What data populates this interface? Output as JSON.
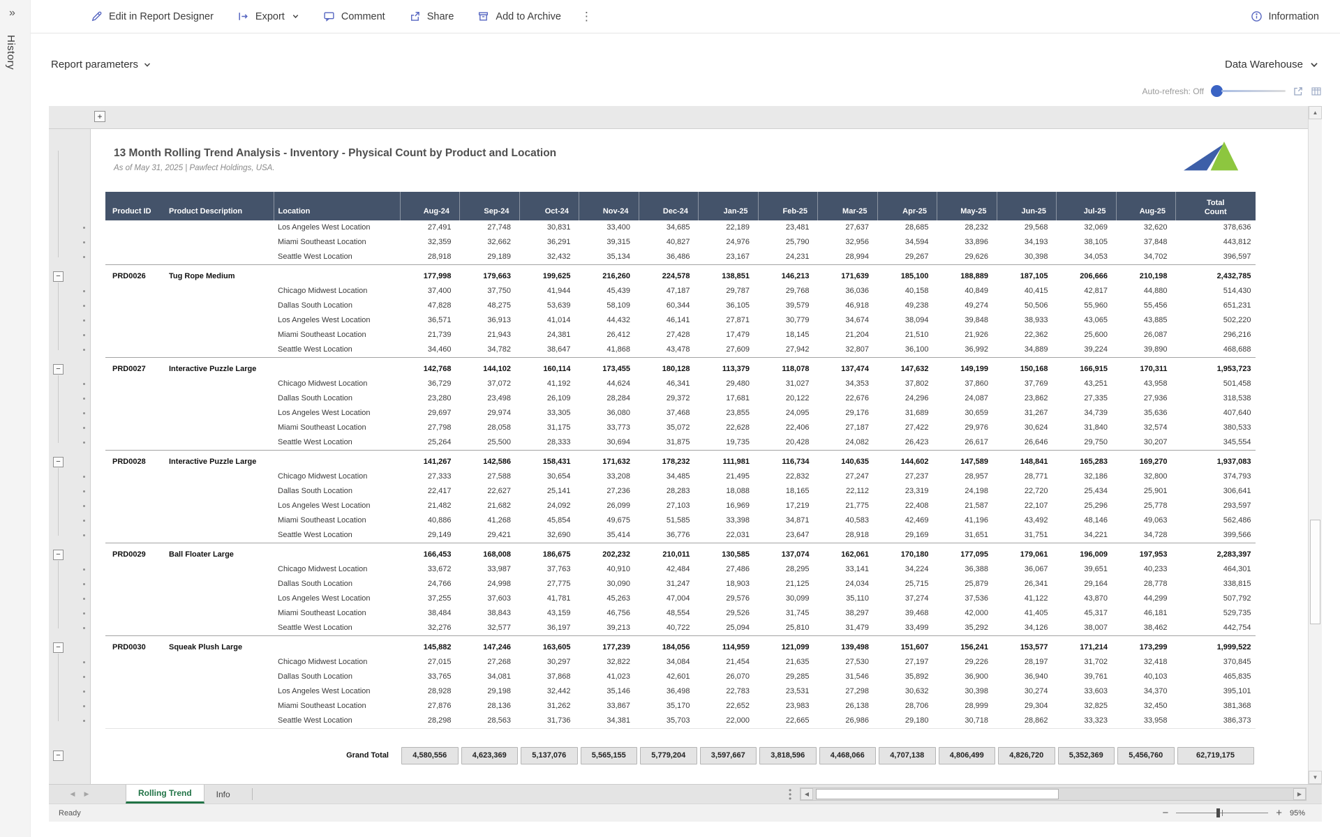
{
  "sidebar": {
    "expand_glyph": "»",
    "history_label": "History"
  },
  "toolbar": {
    "items": [
      {
        "icon": "pencil-icon",
        "label": "Edit in Report Designer"
      },
      {
        "icon": "export-icon",
        "label": "Export"
      },
      {
        "icon": "comment-icon",
        "label": "Comment"
      },
      {
        "icon": "share-icon",
        "label": "Share"
      },
      {
        "icon": "archive-icon",
        "label": "Add to Archive"
      }
    ],
    "more_glyph": "⋮",
    "information_label": "Information"
  },
  "params_bar": {
    "report_parameters": "Report parameters",
    "data_source": "Data Warehouse",
    "auto_refresh": "Auto-refresh: Off"
  },
  "colors": {
    "accent_blue": "#5565C0",
    "table_header_bg": "#44536A",
    "active_tab_green": "#217346",
    "logo_blue": "#3D5FA8",
    "logo_green": "#8DC63F",
    "autorefresh_knob": "#3A63C4"
  },
  "report": {
    "title": "13 Month Rolling Trend Analysis - Inventory - Physical Count by Product and Location",
    "subtitle": "As of May 31, 2025 | Pawfect Holdings, USA.",
    "col_product_id": "Product ID",
    "col_product_desc": "Product Description",
    "col_location": "Location",
    "months": [
      "Aug-24",
      "Sep-24",
      "Oct-24",
      "Nov-24",
      "Dec-24",
      "Jan-25",
      "Feb-25",
      "Mar-25",
      "Apr-25",
      "May-25",
      "Jun-25",
      "Jul-25",
      "Aug-25"
    ],
    "col_total": "Total Count",
    "rows": [
      {
        "t": "l",
        "loc": "Los Angeles West Location",
        "v": [
          "27,491",
          "27,748",
          "30,831",
          "33,400",
          "34,685",
          "22,189",
          "23,481",
          "27,637",
          "28,685",
          "28,232",
          "29,568",
          "32,069",
          "32,620",
          "378,636"
        ]
      },
      {
        "t": "l",
        "loc": "Miami Southeast Location",
        "v": [
          "32,359",
          "32,662",
          "36,291",
          "39,315",
          "40,827",
          "24,976",
          "25,790",
          "32,956",
          "34,594",
          "33,896",
          "34,193",
          "38,105",
          "37,848",
          "443,812"
        ]
      },
      {
        "t": "l",
        "loc": "Seattle West Location",
        "v": [
          "28,918",
          "29,189",
          "32,432",
          "35,134",
          "36,486",
          "23,167",
          "24,231",
          "28,994",
          "29,267",
          "29,626",
          "30,398",
          "34,053",
          "34,702",
          "396,597"
        ]
      },
      {
        "t": "p",
        "id": "PRD0026",
        "desc": "Tug Rope Medium",
        "v": [
          "177,998",
          "179,663",
          "199,625",
          "216,260",
          "224,578",
          "138,851",
          "146,213",
          "171,639",
          "185,100",
          "188,889",
          "187,105",
          "206,666",
          "210,198",
          "2,432,785"
        ]
      },
      {
        "t": "l",
        "loc": "Chicago Midwest Location",
        "v": [
          "37,400",
          "37,750",
          "41,944",
          "45,439",
          "47,187",
          "29,787",
          "29,768",
          "36,036",
          "40,158",
          "40,849",
          "40,415",
          "42,817",
          "44,880",
          "514,430"
        ]
      },
      {
        "t": "l",
        "loc": "Dallas South Location",
        "v": [
          "47,828",
          "48,275",
          "53,639",
          "58,109",
          "60,344",
          "36,105",
          "39,579",
          "46,918",
          "49,238",
          "49,274",
          "50,506",
          "55,960",
          "55,456",
          "651,231"
        ]
      },
      {
        "t": "l",
        "loc": "Los Angeles West Location",
        "v": [
          "36,571",
          "36,913",
          "41,014",
          "44,432",
          "46,141",
          "27,871",
          "30,779",
          "34,674",
          "38,094",
          "39,848",
          "38,933",
          "43,065",
          "43,885",
          "502,220"
        ]
      },
      {
        "t": "l",
        "loc": "Miami Southeast Location",
        "v": [
          "21,739",
          "21,943",
          "24,381",
          "26,412",
          "27,428",
          "17,479",
          "18,145",
          "21,204",
          "21,510",
          "21,926",
          "22,362",
          "25,600",
          "26,087",
          "296,216"
        ]
      },
      {
        "t": "l",
        "loc": "Seattle West Location",
        "v": [
          "34,460",
          "34,782",
          "38,647",
          "41,868",
          "43,478",
          "27,609",
          "27,942",
          "32,807",
          "36,100",
          "36,992",
          "34,889",
          "39,224",
          "39,890",
          "468,688"
        ]
      },
      {
        "t": "p",
        "id": "PRD0027",
        "desc": "Interactive Puzzle Large",
        "v": [
          "142,768",
          "144,102",
          "160,114",
          "173,455",
          "180,128",
          "113,379",
          "118,078",
          "137,474",
          "147,632",
          "149,199",
          "150,168",
          "166,915",
          "170,311",
          "1,953,723"
        ]
      },
      {
        "t": "l",
        "loc": "Chicago Midwest Location",
        "v": [
          "36,729",
          "37,072",
          "41,192",
          "44,624",
          "46,341",
          "29,480",
          "31,027",
          "34,353",
          "37,802",
          "37,860",
          "37,769",
          "43,251",
          "43,958",
          "501,458"
        ]
      },
      {
        "t": "l",
        "loc": "Dallas South Location",
        "v": [
          "23,280",
          "23,498",
          "26,109",
          "28,284",
          "29,372",
          "17,681",
          "20,122",
          "22,676",
          "24,296",
          "24,087",
          "23,862",
          "27,335",
          "27,936",
          "318,538"
        ]
      },
      {
        "t": "l",
        "loc": "Los Angeles West Location",
        "v": [
          "29,697",
          "29,974",
          "33,305",
          "36,080",
          "37,468",
          "23,855",
          "24,095",
          "29,176",
          "31,689",
          "30,659",
          "31,267",
          "34,739",
          "35,636",
          "407,640"
        ]
      },
      {
        "t": "l",
        "loc": "Miami Southeast Location",
        "v": [
          "27,798",
          "28,058",
          "31,175",
          "33,773",
          "35,072",
          "22,628",
          "22,406",
          "27,187",
          "27,422",
          "29,976",
          "30,624",
          "31,840",
          "32,574",
          "380,533"
        ]
      },
      {
        "t": "l",
        "loc": "Seattle West Location",
        "v": [
          "25,264",
          "25,500",
          "28,333",
          "30,694",
          "31,875",
          "19,735",
          "20,428",
          "24,082",
          "26,423",
          "26,617",
          "26,646",
          "29,750",
          "30,207",
          "345,554"
        ]
      },
      {
        "t": "p",
        "id": "PRD0028",
        "desc": "Interactive Puzzle Large",
        "v": [
          "141,267",
          "142,586",
          "158,431",
          "171,632",
          "178,232",
          "111,981",
          "116,734",
          "140,635",
          "144,602",
          "147,589",
          "148,841",
          "165,283",
          "169,270",
          "1,937,083"
        ]
      },
      {
        "t": "l",
        "loc": "Chicago Midwest Location",
        "v": [
          "27,333",
          "27,588",
          "30,654",
          "33,208",
          "34,485",
          "21,495",
          "22,832",
          "27,247",
          "27,237",
          "28,957",
          "28,771",
          "32,186",
          "32,800",
          "374,793"
        ]
      },
      {
        "t": "l",
        "loc": "Dallas South Location",
        "v": [
          "22,417",
          "22,627",
          "25,141",
          "27,236",
          "28,283",
          "18,088",
          "18,165",
          "22,112",
          "23,319",
          "24,198",
          "22,720",
          "25,434",
          "25,901",
          "306,641"
        ]
      },
      {
        "t": "l",
        "loc": "Los Angeles West Location",
        "v": [
          "21,482",
          "21,682",
          "24,092",
          "26,099",
          "27,103",
          "16,969",
          "17,219",
          "21,775",
          "22,408",
          "21,587",
          "22,107",
          "25,296",
          "25,778",
          "293,597"
        ]
      },
      {
        "t": "l",
        "loc": "Miami Southeast Location",
        "v": [
          "40,886",
          "41,268",
          "45,854",
          "49,675",
          "51,585",
          "33,398",
          "34,871",
          "40,583",
          "42,469",
          "41,196",
          "43,492",
          "48,146",
          "49,063",
          "562,486"
        ]
      },
      {
        "t": "l",
        "loc": "Seattle West Location",
        "v": [
          "29,149",
          "29,421",
          "32,690",
          "35,414",
          "36,776",
          "22,031",
          "23,647",
          "28,918",
          "29,169",
          "31,651",
          "31,751",
          "34,221",
          "34,728",
          "399,566"
        ]
      },
      {
        "t": "p",
        "id": "PRD0029",
        "desc": "Ball Floater Large",
        "v": [
          "166,453",
          "168,008",
          "186,675",
          "202,232",
          "210,011",
          "130,585",
          "137,074",
          "162,061",
          "170,180",
          "177,095",
          "179,061",
          "196,009",
          "197,953",
          "2,283,397"
        ]
      },
      {
        "t": "l",
        "loc": "Chicago Midwest Location",
        "v": [
          "33,672",
          "33,987",
          "37,763",
          "40,910",
          "42,484",
          "27,486",
          "28,295",
          "33,141",
          "34,224",
          "36,388",
          "36,067",
          "39,651",
          "40,233",
          "464,301"
        ]
      },
      {
        "t": "l",
        "loc": "Dallas South Location",
        "v": [
          "24,766",
          "24,998",
          "27,775",
          "30,090",
          "31,247",
          "18,903",
          "21,125",
          "24,034",
          "25,715",
          "25,879",
          "26,341",
          "29,164",
          "28,778",
          "338,815"
        ]
      },
      {
        "t": "l",
        "loc": "Los Angeles West Location",
        "v": [
          "37,255",
          "37,603",
          "41,781",
          "45,263",
          "47,004",
          "29,576",
          "30,099",
          "35,110",
          "37,274",
          "37,536",
          "41,122",
          "43,870",
          "44,299",
          "507,792"
        ]
      },
      {
        "t": "l",
        "loc": "Miami Southeast Location",
        "v": [
          "38,484",
          "38,843",
          "43,159",
          "46,756",
          "48,554",
          "29,526",
          "31,745",
          "38,297",
          "39,468",
          "42,000",
          "41,405",
          "45,317",
          "46,181",
          "529,735"
        ]
      },
      {
        "t": "l",
        "loc": "Seattle West Location",
        "v": [
          "32,276",
          "32,577",
          "36,197",
          "39,213",
          "40,722",
          "25,094",
          "25,810",
          "31,479",
          "33,499",
          "35,292",
          "34,126",
          "38,007",
          "38,462",
          "442,754"
        ]
      },
      {
        "t": "p",
        "id": "PRD0030",
        "desc": "Squeak Plush Large",
        "v": [
          "145,882",
          "147,246",
          "163,605",
          "177,239",
          "184,056",
          "114,959",
          "121,099",
          "139,498",
          "151,607",
          "156,241",
          "153,577",
          "171,214",
          "173,299",
          "1,999,522"
        ]
      },
      {
        "t": "l",
        "loc": "Chicago Midwest Location",
        "v": [
          "27,015",
          "27,268",
          "30,297",
          "32,822",
          "34,084",
          "21,454",
          "21,635",
          "27,530",
          "27,197",
          "29,226",
          "28,197",
          "31,702",
          "32,418",
          "370,845"
        ]
      },
      {
        "t": "l",
        "loc": "Dallas South Location",
        "v": [
          "33,765",
          "34,081",
          "37,868",
          "41,023",
          "42,601",
          "26,070",
          "29,285",
          "31,546",
          "35,892",
          "36,900",
          "36,940",
          "39,761",
          "40,103",
          "465,835"
        ]
      },
      {
        "t": "l",
        "loc": "Los Angeles West Location",
        "v": [
          "28,928",
          "29,198",
          "32,442",
          "35,146",
          "36,498",
          "22,783",
          "23,531",
          "27,298",
          "30,632",
          "30,398",
          "30,274",
          "33,603",
          "34,370",
          "395,101"
        ]
      },
      {
        "t": "l",
        "loc": "Miami Southeast Location",
        "v": [
          "27,876",
          "28,136",
          "31,262",
          "33,867",
          "35,170",
          "22,652",
          "23,983",
          "26,138",
          "28,706",
          "28,999",
          "29,304",
          "32,825",
          "32,450",
          "381,368"
        ]
      },
      {
        "t": "l",
        "loc": "Seattle West Location",
        "v": [
          "28,298",
          "28,563",
          "31,736",
          "34,381",
          "35,703",
          "22,000",
          "22,665",
          "26,986",
          "29,180",
          "30,718",
          "28,862",
          "33,323",
          "33,958",
          "386,373"
        ]
      }
    ],
    "grand_total": {
      "label": "Grand Total",
      "v": [
        "4,580,556",
        "4,623,369",
        "5,137,076",
        "5,565,155",
        "5,779,204",
        "3,597,667",
        "3,818,596",
        "4,468,066",
        "4,707,138",
        "4,806,499",
        "4,826,720",
        "5,352,369",
        "5,456,760",
        "62,719,175"
      ]
    }
  },
  "tabs": {
    "items": [
      {
        "label": "Rolling Trend",
        "active": true
      },
      {
        "label": "Info",
        "active": false
      }
    ]
  },
  "statusbar": {
    "ready": "Ready",
    "zoom": "95%"
  }
}
